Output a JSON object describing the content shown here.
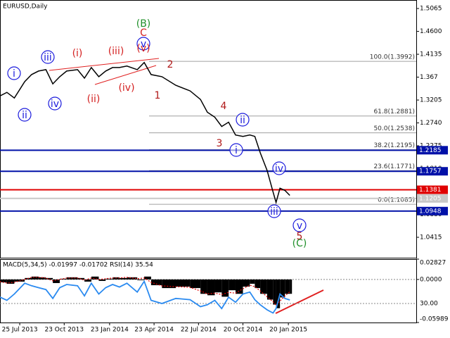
{
  "chart_data": [
    {
      "type": "line",
      "title": "EURUSD,Daily",
      "x": [
        "2013-06-15",
        "2013-06-29",
        "2013-07-14",
        "2013-08-04",
        "2013-08-18",
        "2013-09-01",
        "2013-09-16",
        "2013-09-30",
        "2013-10-14",
        "2013-10-28",
        "2013-11-19",
        "2013-12-03",
        "2013-12-17",
        "2014-01-01",
        "2014-01-15",
        "2014-01-29",
        "2014-02-12",
        "2014-02-27",
        "2014-03-20",
        "2014-04-03",
        "2014-04-17",
        "2014-05-09",
        "2014-06-06",
        "2014-07-05",
        "2014-07-26",
        "2014-08-09",
        "2014-08-24",
        "2014-09-07",
        "2014-09-21",
        "2014-10-05",
        "2014-10-20",
        "2014-11-03",
        "2014-11-13",
        "2014-11-24",
        "2014-12-08",
        "2014-12-20",
        "2014-12-26",
        "2015-01-03",
        "2015-01-13",
        "2015-01-23"
      ],
      "series": [
        {
          "name": "EURUSD",
          "color": "#000000",
          "values": [
            1.3289,
            1.3361,
            1.3246,
            1.3578,
            1.3722,
            1.3794,
            1.3823,
            1.3534,
            1.3679,
            1.3794,
            1.3823,
            1.365,
            1.3866,
            1.3679,
            1.3794,
            1.3866,
            1.3866,
            1.3895,
            1.3823,
            1.3968,
            1.3722,
            1.3679,
            1.3505,
            1.339,
            1.3217,
            1.2957,
            1.2856,
            1.2668,
            1.2755,
            1.2495,
            1.2466,
            1.2495,
            1.2466,
            1.2134,
            1.1773,
            1.134,
            1.1123,
            1.1412,
            1.1368,
            1.1267
          ]
        }
      ],
      "xlim": [
        "2013-06-15",
        "2015-10-06"
      ],
      "xticks": [
        {
          "value": "2013-07-25",
          "label": "25 Jul 2013"
        },
        {
          "value": "2013-10-23",
          "label": "23 Oct 2013"
        },
        {
          "value": "2014-01-23",
          "label": "23 Jan 2014"
        },
        {
          "value": "2014-04-23",
          "label": "23 Apr 2014"
        },
        {
          "value": "2014-07-22",
          "label": "22 Jul 2014"
        },
        {
          "value": "2014-10-20",
          "label": "20 Oct 2014"
        },
        {
          "value": "2015-01-20",
          "label": "20 Jan 2015"
        }
      ],
      "ylim": [
        1.0,
        1.5238
      ],
      "yticks": [
        1.5065,
        {
          "value": 1.46,
          "label": "1.4600"
        },
        1.4135,
        1.367,
        1.3205,
        {
          "value": 1.274,
          "label": "1.2740"
        },
        1.2275,
        {
          "value": 1.181,
          "label": "1.1810"
        },
        1.1345,
        {
          "value": 1.088,
          "label": "1.0880"
        },
        1.0415
      ],
      "fib_levels": [
        {
          "label": "100.0(1.3992)",
          "value": 1.3992
        },
        {
          "label": "61.8(1.2881)",
          "value": 1.2881
        },
        {
          "label": "50.0(1.2538)",
          "value": 1.2538
        },
        {
          "label": "38.2(1.2195)",
          "value": 1.2195
        },
        {
          "label": "23.6(1.1771)",
          "value": 1.1771
        },
        {
          "label": "0.0(1.1085)",
          "value": 1.1085
        }
      ],
      "levels": [
        {
          "value": 1.2185,
          "color": "#0010a8"
        },
        {
          "value": 1.1757,
          "color": "#0010a8"
        },
        {
          "value": 1.1381,
          "color": "#e00000"
        },
        {
          "value": 1.1205,
          "color": "#c8c8c8"
        },
        {
          "value": 1.0948,
          "color": "#0010a8"
        }
      ],
      "annotations": [
        {
          "text": "i",
          "color": "#1a1adc",
          "circled": true
        },
        {
          "text": "ii",
          "color": "#1a1adc",
          "circled": true
        },
        {
          "text": "iii",
          "color": "#1a1adc",
          "circled": true
        },
        {
          "text": "iv",
          "color": "#1a1adc",
          "circled": true
        },
        {
          "text": "(i)",
          "color": "#d42020",
          "circled": false
        },
        {
          "text": "(ii)",
          "color": "#d42020",
          "circled": false
        },
        {
          "text": "(iii)",
          "color": "#d42020",
          "circled": false
        },
        {
          "text": "(iv)",
          "color": "#d42020",
          "circled": false
        },
        {
          "text": "v",
          "color": "#1a1adc",
          "circled": true
        },
        {
          "text": "(v)",
          "color": "#d42020",
          "circled": false
        },
        {
          "text": "(B)",
          "color": "#20902a",
          "circled": false
        },
        {
          "text": "C",
          "color": "#d42020",
          "circled": false
        },
        {
          "text": "2",
          "color": "#b01818",
          "circled": false
        },
        {
          "text": "1",
          "color": "#b01818",
          "circled": false
        },
        {
          "text": "4",
          "color": "#b01818",
          "circled": false
        },
        {
          "text": "ii",
          "color": "#1a1adc",
          "circled": true
        },
        {
          "text": "3",
          "color": "#b01818",
          "circled": false
        },
        {
          "text": "i",
          "color": "#1a1adc",
          "circled": true
        },
        {
          "text": "iv",
          "color": "#1a1adc",
          "circled": true
        },
        {
          "text": "iii",
          "color": "#1a1adc",
          "circled": true
        },
        {
          "text": "v",
          "color": "#1a1adc",
          "circled": true
        },
        {
          "text": "5",
          "color": "#b01818",
          "circled": false
        },
        {
          "text": "(C)",
          "color": "#20902a",
          "circled": false
        }
      ]
    },
    {
      "type": "bar",
      "title": "MACD(5,34,5) -0.01997 -0.01702 RSI(14) 35.54",
      "x": [
        "2013-06-15",
        "2013-06-29",
        "2013-07-14",
        "2013-08-04",
        "2013-08-18",
        "2013-09-01",
        "2013-09-16",
        "2013-09-30",
        "2013-10-14",
        "2013-10-28",
        "2013-11-19",
        "2013-12-03",
        "2013-12-17",
        "2014-01-01",
        "2014-01-15",
        "2014-01-29",
        "2014-02-12",
        "2014-02-27",
        "2014-03-20",
        "2014-04-03",
        "2014-04-17",
        "2014-05-09",
        "2014-06-06",
        "2014-07-05",
        "2014-07-26",
        "2014-08-09",
        "2014-08-24",
        "2014-09-07",
        "2014-09-21",
        "2014-10-05",
        "2014-10-20",
        "2014-11-03",
        "2014-11-13",
        "2014-11-24",
        "2014-12-08",
        "2014-12-20",
        "2014-12-26",
        "2015-01-03",
        "2015-01-13",
        "2015-01-23"
      ],
      "series": [
        {
          "name": "MACD",
          "style": "bar",
          "color": "#000000",
          "values": [
            -0.004,
            -0.006,
            -0.003,
            0.002,
            0.004,
            0.003,
            0.002,
            -0.005,
            0.001,
            0.003,
            0.002,
            -0.003,
            0.004,
            -0.002,
            0.001,
            0.003,
            0.002,
            0.003,
            -0.001,
            0.004,
            -0.008,
            -0.012,
            -0.01,
            -0.012,
            -0.02,
            -0.022,
            -0.018,
            -0.024,
            -0.015,
            -0.02,
            -0.01,
            -0.006,
            -0.012,
            -0.02,
            -0.028,
            -0.035,
            -0.04,
            -0.025,
            -0.02,
            -0.01997
          ]
        },
        {
          "name": "Signal",
          "style": "dotted",
          "color": "#e00000",
          "values": [
            -0.003,
            -0.005,
            -0.004,
            0.0,
            0.003,
            0.003,
            0.002,
            -0.002,
            0.0,
            0.002,
            0.002,
            -0.001,
            0.002,
            0.0,
            0.001,
            0.002,
            0.002,
            0.003,
            0.001,
            0.002,
            -0.004,
            -0.009,
            -0.01,
            -0.011,
            -0.016,
            -0.02,
            -0.019,
            -0.021,
            -0.018,
            -0.019,
            -0.013,
            -0.008,
            -0.01,
            -0.016,
            -0.024,
            -0.031,
            -0.036,
            -0.03,
            -0.023,
            -0.01702
          ]
        },
        {
          "name": "RSI",
          "style": "line",
          "color": "#2a8af0",
          "axis": "y2",
          "values": [
            40,
            35,
            45,
            62,
            58,
            55,
            52,
            38,
            55,
            60,
            58,
            42,
            62,
            45,
            55,
            60,
            56,
            62,
            48,
            65,
            35,
            30,
            38,
            36,
            25,
            28,
            35,
            22,
            40,
            32,
            45,
            48,
            36,
            28,
            20,
            15,
            22,
            45,
            38,
            35.54
          ]
        }
      ],
      "xlim": [
        "2013-06-15",
        "2015-10-06"
      ],
      "ylim": [
        -0.05989,
        0.02827
      ],
      "yticks": [
        0.02827,
        {
          "value": 0,
          "label": "0.0000"
        },
        -0.05989
      ],
      "y2lim": [
        0,
        100
      ],
      "y2ticks": [
        {
          "value": 30,
          "label": "30.00"
        }
      ]
    }
  ]
}
